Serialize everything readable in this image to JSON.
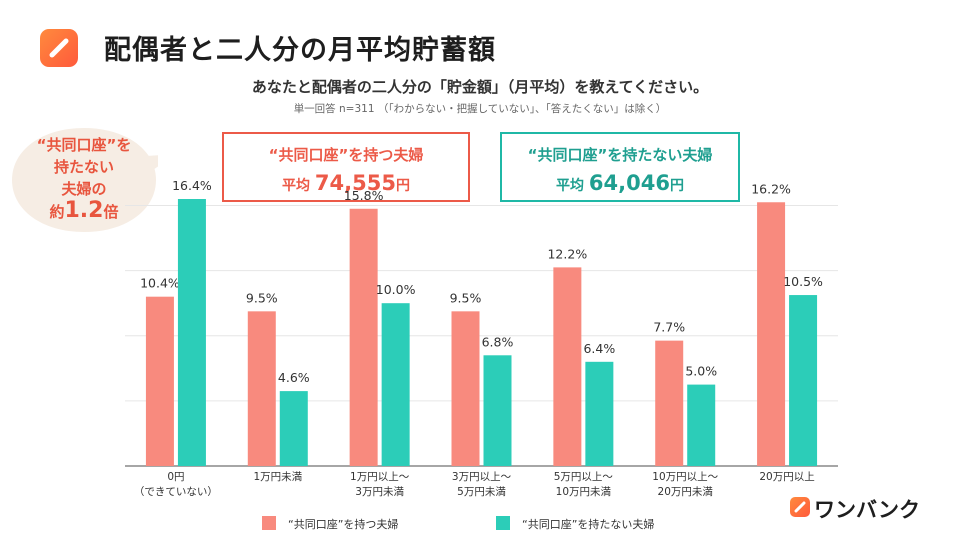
{
  "header": {
    "title": "配偶者と二人分の月平均貯蓄額",
    "subtitle": "あなたと配偶者の二人分の「貯金額」（月平均）を教えてください。",
    "note": "単一回答  n=311 （「わからない・把握していない」、「答えたくない」は除く）",
    "logo_icon": "pencil-icon"
  },
  "callout": {
    "line1": "“共同口座”を",
    "line2": "持たない",
    "line3": "夫婦の",
    "prefix": "約",
    "value": "1.2",
    "suffix": "倍"
  },
  "summary": {
    "with": {
      "label": "“共同口座”を持つ夫婦",
      "avg_prefix": "平均",
      "avg_value": "74,555",
      "avg_unit": "円"
    },
    "without": {
      "label": "“共同口座”を持たない夫婦",
      "avg_prefix": "平均",
      "avg_value": "64,046",
      "avg_unit": "円"
    }
  },
  "colors": {
    "with": "#f88a7e",
    "without": "#2ccdb8",
    "grid": "#e6e6e6",
    "axis": "#888888"
  },
  "chart_data": {
    "type": "bar",
    "categories": [
      [
        "0円",
        "（できていない）"
      ],
      [
        "1万円未満"
      ],
      [
        "1万円以上～",
        "3万円未満"
      ],
      [
        "3万円以上～",
        "5万円未満"
      ],
      [
        "5万円以上～",
        "10万円未満"
      ],
      [
        "10万円以上～",
        "20万円未満"
      ],
      [
        "20万円以上"
      ]
    ],
    "series": [
      {
        "name": "“共同口座”を持つ夫婦",
        "values": [
          10.4,
          9.5,
          15.8,
          9.5,
          12.2,
          7.7,
          16.2
        ],
        "labels": [
          "10.4%",
          "9.5%",
          "15.8%",
          "9.5%",
          "12.2%",
          "7.7%",
          "16.2%"
        ]
      },
      {
        "name": "“共同口座”を持たない夫婦",
        "values": [
          16.4,
          4.6,
          10.0,
          6.8,
          6.4,
          5.0,
          10.5
        ],
        "labels": [
          "16.4%",
          "4.6%",
          "10.0%",
          "6.8%",
          "6.4%",
          "5.0%",
          "10.5%"
        ]
      }
    ],
    "ylim": [
      0,
      16.4
    ],
    "grid": true,
    "legend": "bottom"
  },
  "legend": {
    "with_label": "“共同口座”を持つ夫婦",
    "without_label": "“共同口座”を持たない夫婦"
  },
  "brand": {
    "name": "ワンバンク",
    "icon": "pencil-icon"
  }
}
